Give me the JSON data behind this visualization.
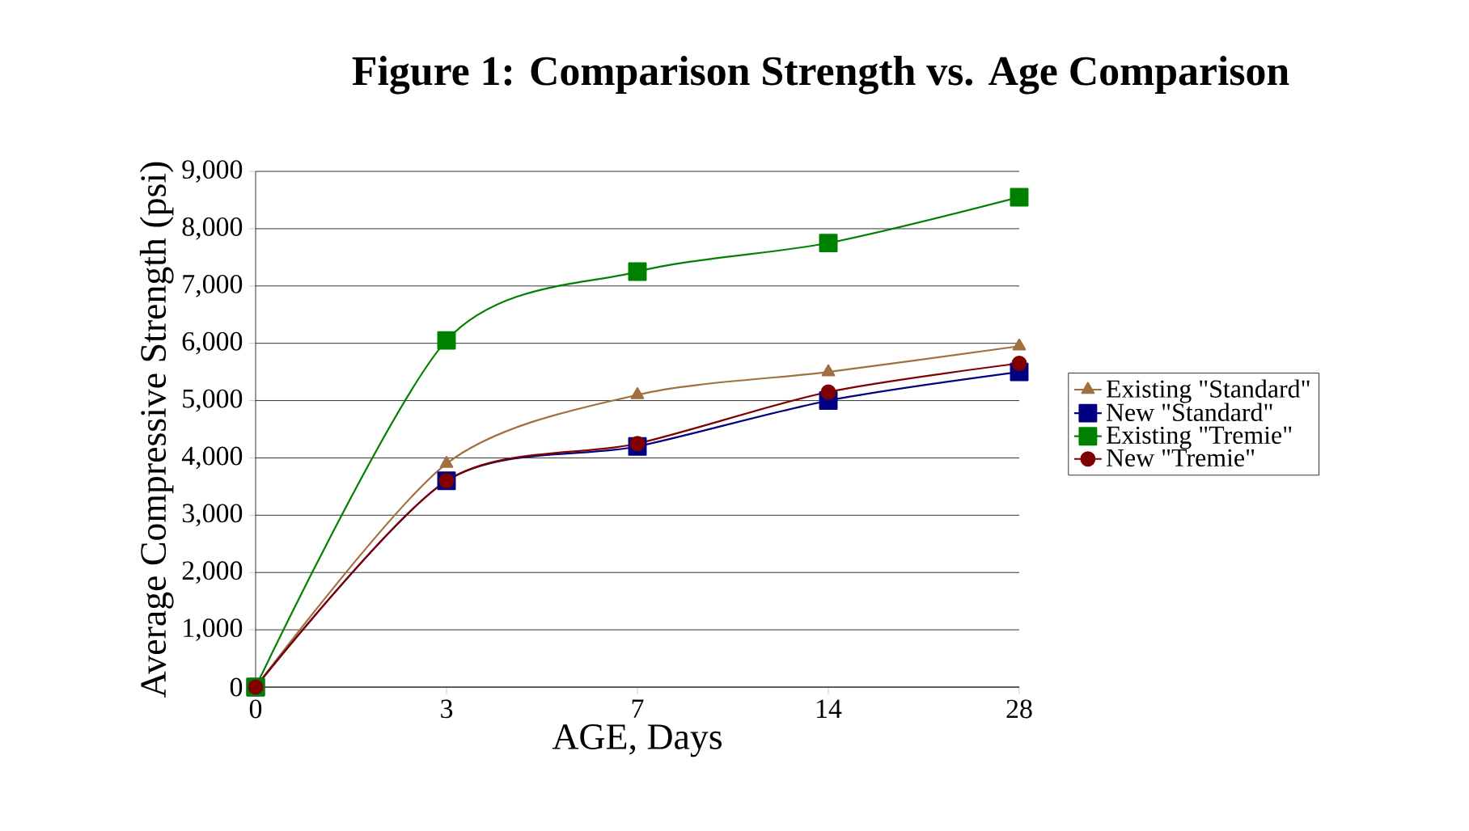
{
  "chart_data": {
    "type": "line",
    "title": "Figure 1:  Comparison Strength vs. Age Comparison",
    "xlabel": "AGE, Days",
    "ylabel": "Average Compressive Strength (psi)",
    "categories": [
      "0",
      "3",
      "7",
      "14",
      "28"
    ],
    "series": [
      {
        "name": "Existing \"Standard\"",
        "color": "#a07040",
        "marker": "triangle",
        "values": [
          0,
          3900,
          5100,
          5500,
          5950
        ]
      },
      {
        "name": "New \"Standard\"",
        "color": "#000080",
        "marker": "square",
        "values": [
          0,
          3600,
          4200,
          5000,
          5500
        ]
      },
      {
        "name": "Existing \"Tremie\"",
        "color": "#008000",
        "marker": "square",
        "values": [
          0,
          6050,
          7250,
          7750,
          8550
        ]
      },
      {
        "name": "New \"Tremie\"",
        "color": "#800000",
        "marker": "circle",
        "values": [
          0,
          3600,
          4250,
          5150,
          5650
        ]
      }
    ],
    "ylim": [
      0,
      9000
    ],
    "yticks": [
      {
        "value": 0,
        "label": "0"
      },
      {
        "value": 1000,
        "label": "1,000"
      },
      {
        "value": 2000,
        "label": "2,000"
      },
      {
        "value": 3000,
        "label": "3,000"
      },
      {
        "value": 4000,
        "label": "4,000"
      },
      {
        "value": 5000,
        "label": "5,000"
      },
      {
        "value": 6000,
        "label": "6,000"
      },
      {
        "value": 7000,
        "label": "7,000"
      },
      {
        "value": 8000,
        "label": "8,000"
      },
      {
        "value": 9000,
        "label": "9,000"
      }
    ],
    "grid": "y",
    "legend": "right",
    "line_style": "solid"
  }
}
